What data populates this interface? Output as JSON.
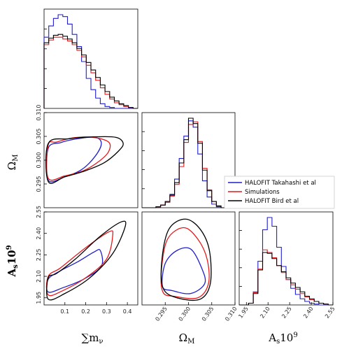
{
  "chart_data": {
    "type": "corner",
    "parameters": [
      "sum_mnu",
      "omega_m",
      "as1e9"
    ],
    "axis_labels": {
      "sum_mnu": "∑m_ν",
      "omega_m": "Ω_M",
      "as1e9": "A_s10^9"
    },
    "ranges": {
      "sum_mnu": [
        0.0,
        0.45
      ],
      "omega_m": [
        0.29,
        0.31
      ],
      "as1e9": [
        1.9,
        2.55
      ]
    },
    "ticks": {
      "sum_mnu": {
        "values": [
          0.1,
          0.2,
          0.3,
          0.4
        ],
        "labels": [
          "0.1",
          "0.2",
          "0.3",
          "0.4"
        ]
      },
      "omega_m_x": {
        "values": [
          0.295,
          0.3,
          0.305,
          0.31
        ],
        "labels": [
          "0.295",
          "0.300",
          "0.305",
          "0.310"
        ]
      },
      "omega_m_y": {
        "values": [
          0.295,
          0.3,
          0.305,
          0.31
        ],
        "labels": [
          "0.295",
          "0.300",
          "0.305",
          "0.310"
        ]
      },
      "as1e9_x": {
        "values": [
          1.95,
          2.1,
          2.25,
          2.4,
          2.55
        ],
        "labels": [
          "1.95",
          "2.10",
          "2.25",
          "2.40",
          "2.55"
        ]
      },
      "as1e9_y": {
        "values": [
          1.95,
          2.1,
          2.25,
          2.4,
          2.55
        ],
        "labels": [
          "1.95",
          "2.10",
          "2.25",
          "2.40",
          "2.55"
        ]
      }
    },
    "legend": {
      "placement": "right of middle row",
      "entries": [
        {
          "name": "HALOFIT Takahashi et al",
          "color": "#1f1fcc"
        },
        {
          "name": "Simulations",
          "color": "#e31a1c"
        },
        {
          "name": "HALOFIT Bird et al",
          "color": "#000000"
        }
      ]
    },
    "series": [
      {
        "name": "HALOFIT Takahashi et al",
        "color": "#1f1fcc",
        "hist_sum_mnu": {
          "edges": [
            0.0,
            0.45
          ],
          "heights": [
            0.76,
            0.88,
            0.96,
            1.0,
            0.98,
            0.9,
            0.79,
            0.66,
            0.5,
            0.32,
            0.2,
            0.11,
            0.05,
            0.02,
            0.01,
            0.0,
            0.0,
            0.0,
            0.0,
            0.0
          ]
        },
        "hist_omega_m": {
          "edges": [
            0.29,
            0.31
          ],
          "heights": [
            0.0,
            0.0,
            0.0,
            0.01,
            0.03,
            0.07,
            0.15,
            0.32,
            0.55,
            0.8,
            0.97,
            0.9,
            0.6,
            0.3,
            0.12,
            0.04,
            0.01,
            0.0,
            0.0,
            0.0
          ]
        },
        "hist_as1e9": {
          "edges": [
            1.9,
            2.55
          ],
          "heights": [
            0.0,
            0.0,
            0.02,
            0.15,
            0.5,
            0.86,
            1.0,
            0.9,
            0.66,
            0.44,
            0.29,
            0.19,
            0.12,
            0.07,
            0.04,
            0.02,
            0.01,
            0.0,
            0.0,
            0.0
          ]
        },
        "contour_mnu_omega": [
          [
            0.02,
            0.2958
          ],
          [
            0.1,
            0.2965
          ],
          [
            0.18,
            0.298
          ],
          [
            0.245,
            0.3008
          ],
          [
            0.275,
            0.3035
          ],
          [
            0.245,
            0.3048
          ],
          [
            0.16,
            0.3045
          ],
          [
            0.08,
            0.3037
          ],
          [
            0.02,
            0.3025
          ]
        ],
        "contour_mnu_as": [
          [
            0.02,
            1.99
          ],
          [
            0.09,
            2.02
          ],
          [
            0.19,
            2.08
          ],
          [
            0.275,
            2.17
          ],
          [
            0.27,
            2.28
          ],
          [
            0.24,
            2.27
          ],
          [
            0.16,
            2.2
          ],
          [
            0.08,
            2.14
          ],
          [
            0.02,
            2.08
          ]
        ],
        "contour_omega_as": [
          [
            0.2944,
            2.03
          ],
          [
            0.2965,
            2.0
          ],
          [
            0.3005,
            1.98
          ],
          [
            0.3035,
            2.05
          ],
          [
            0.3028,
            2.16
          ],
          [
            0.3005,
            2.29
          ],
          [
            0.2975,
            2.28
          ],
          [
            0.295,
            2.19
          ]
        ]
      },
      {
        "name": "Simulations",
        "color": "#e31a1c",
        "hist_sum_mnu": {
          "edges": [
            0.0,
            0.45
          ],
          "heights": [
            0.68,
            0.73,
            0.76,
            0.76,
            0.74,
            0.72,
            0.68,
            0.62,
            0.55,
            0.46,
            0.38,
            0.3,
            0.22,
            0.15,
            0.1,
            0.06,
            0.04,
            0.02,
            0.01,
            0.0
          ]
        },
        "hist_omega_m": {
          "edges": [
            0.29,
            0.31
          ],
          "heights": [
            0.0,
            0.0,
            0.0,
            0.01,
            0.03,
            0.06,
            0.13,
            0.26,
            0.46,
            0.73,
            0.93,
            0.96,
            0.74,
            0.44,
            0.2,
            0.07,
            0.02,
            0.0,
            0.0,
            0.0
          ]
        },
        "hist_as1e9": {
          "edges": [
            1.9,
            2.55
          ],
          "heights": [
            0.0,
            0.0,
            0.02,
            0.14,
            0.41,
            0.63,
            0.6,
            0.54,
            0.45,
            0.37,
            0.29,
            0.23,
            0.18,
            0.13,
            0.09,
            0.06,
            0.04,
            0.02,
            0.01,
            0.0
          ]
        },
        "contour_mnu_omega": [
          [
            0.02,
            0.2962
          ],
          [
            0.1,
            0.2967
          ],
          [
            0.19,
            0.2978
          ],
          [
            0.265,
            0.2998
          ],
          [
            0.31,
            0.3018
          ],
          [
            0.31,
            0.3038
          ],
          [
            0.235,
            0.3048
          ],
          [
            0.14,
            0.3047
          ],
          [
            0.06,
            0.3038
          ],
          [
            0.02,
            0.3032
          ]
        ],
        "contour_mnu_as": [
          [
            0.02,
            1.97
          ],
          [
            0.09,
            2.0
          ],
          [
            0.2,
            2.09
          ],
          [
            0.3,
            2.22
          ],
          [
            0.33,
            2.39
          ],
          [
            0.31,
            2.41
          ],
          [
            0.2,
            2.3
          ],
          [
            0.08,
            2.16
          ],
          [
            0.02,
            2.1
          ]
        ],
        "contour_omega_as": [
          [
            0.2945,
            1.99
          ],
          [
            0.297,
            1.96
          ],
          [
            0.302,
            1.95
          ],
          [
            0.3043,
            2.05
          ],
          [
            0.304,
            2.22
          ],
          [
            0.302,
            2.36
          ],
          [
            0.299,
            2.44
          ],
          [
            0.2955,
            2.36
          ],
          [
            0.2942,
            2.15
          ]
        ]
      },
      {
        "name": "HALOFIT Bird et al",
        "color": "#000000",
        "hist_sum_mnu": {
          "edges": [
            0.0,
            0.45
          ],
          "heights": [
            0.7,
            0.75,
            0.78,
            0.79,
            0.77,
            0.74,
            0.7,
            0.64,
            0.57,
            0.49,
            0.41,
            0.33,
            0.25,
            0.18,
            0.12,
            0.08,
            0.05,
            0.03,
            0.01,
            0.0
          ]
        },
        "hist_omega_m": {
          "edges": [
            0.29,
            0.31
          ],
          "heights": [
            0.0,
            0.0,
            0.0,
            0.01,
            0.03,
            0.07,
            0.14,
            0.28,
            0.5,
            0.76,
            1.0,
            0.94,
            0.72,
            0.42,
            0.19,
            0.07,
            0.02,
            0.0,
            0.0,
            0.0
          ]
        },
        "hist_as1e9": {
          "edges": [
            1.9,
            2.55
          ],
          "heights": [
            0.0,
            0.0,
            0.02,
            0.13,
            0.4,
            0.6,
            0.59,
            0.53,
            0.45,
            0.38,
            0.31,
            0.25,
            0.2,
            0.15,
            0.1,
            0.07,
            0.04,
            0.02,
            0.01,
            0.0
          ]
        },
        "contour_mnu_omega": [
          [
            0.02,
            0.2955
          ],
          [
            0.1,
            0.2965
          ],
          [
            0.2,
            0.2978
          ],
          [
            0.29,
            0.2995
          ],
          [
            0.355,
            0.3018
          ],
          [
            0.38,
            0.3035
          ],
          [
            0.345,
            0.3048
          ],
          [
            0.24,
            0.3049
          ],
          [
            0.12,
            0.3045
          ],
          [
            0.02,
            0.3035
          ]
        ],
        "contour_mnu_as": [
          [
            0.02,
            1.94
          ],
          [
            0.1,
            1.98
          ],
          [
            0.22,
            2.09
          ],
          [
            0.33,
            2.26
          ],
          [
            0.39,
            2.45
          ],
          [
            0.37,
            2.48
          ],
          [
            0.27,
            2.38
          ],
          [
            0.15,
            2.22
          ],
          [
            0.06,
            2.12
          ],
          [
            0.02,
            2.09
          ]
        ],
        "contour_omega_as": [
          [
            0.2945,
            2.02
          ],
          [
            0.2975,
            1.95
          ],
          [
            0.3025,
            1.94
          ],
          [
            0.3047,
            2.05
          ],
          [
            0.3045,
            2.28
          ],
          [
            0.3025,
            2.43
          ],
          [
            0.2993,
            2.5
          ],
          [
            0.2958,
            2.43
          ],
          [
            0.2943,
            2.22
          ]
        ]
      }
    ]
  }
}
